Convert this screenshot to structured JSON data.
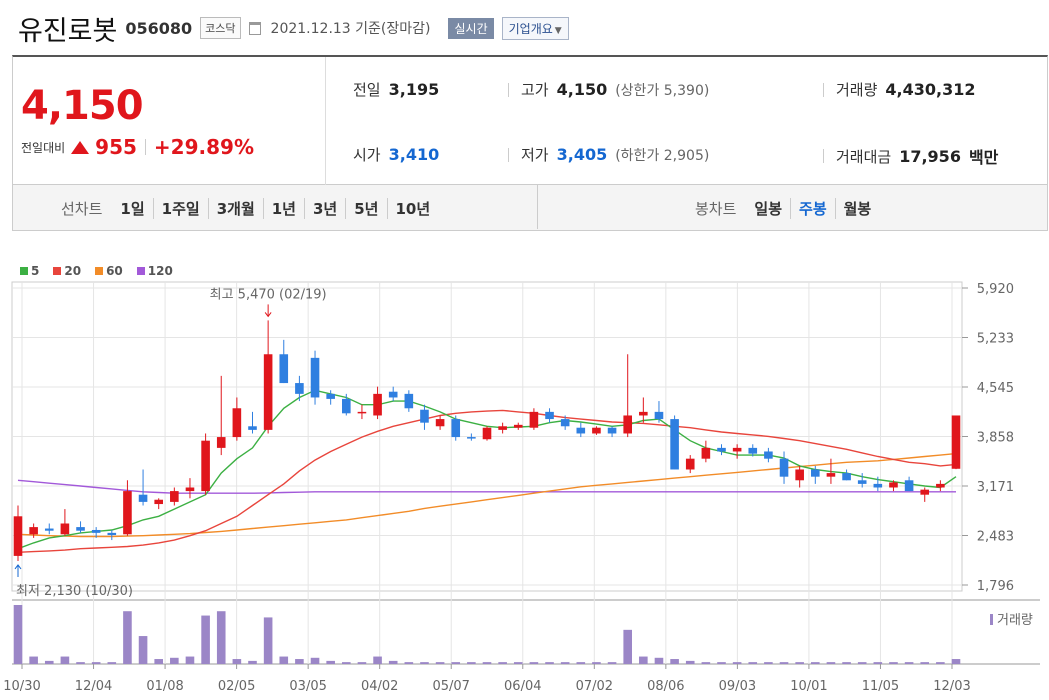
{
  "header": {
    "name": "유진로봇",
    "code": "056080",
    "market": "코스닥",
    "date_text": "2021.12.13 기준(장마감)",
    "realtime_label": "실시간",
    "company_info_label": "기업개요"
  },
  "quote": {
    "price": "4,150",
    "change_label": "전일대비",
    "change": "955",
    "change_rate": "+29.89%",
    "prev_close_label": "전일",
    "prev_close": "3,195",
    "high_label": "고가",
    "high": "4,150",
    "upper_limit": "(상한가 5,390)",
    "volume_label": "거래량",
    "volume": "4,430,312",
    "open_label": "시가",
    "open": "3,410",
    "low_label": "저가",
    "low": "3,405",
    "lower_limit": "(하한가 2,905)",
    "trade_value_label": "거래대금",
    "trade_value": "17,956",
    "trade_value_unit": "백만"
  },
  "periods": {
    "line_label": "선차트",
    "line_items": [
      "1일",
      "1주일",
      "3개월",
      "1년",
      "3년",
      "5년",
      "10년"
    ],
    "candle_label": "봉차트",
    "candle_items": [
      "일봉",
      "주봉",
      "월봉"
    ],
    "candle_selected": "주봉"
  },
  "legend": [
    {
      "label": "5",
      "color": "#3cb043"
    },
    {
      "label": "20",
      "color": "#e8453c"
    },
    {
      "label": "60",
      "color": "#f28c28"
    },
    {
      "label": "120",
      "color": "#a259d9"
    }
  ],
  "colors": {
    "up": "#e0161c",
    "down": "#2f7fe0",
    "volume": "#9b86c7",
    "grid": "#e5e5e5"
  },
  "chart_data": {
    "type": "candlestick",
    "y_ticks": [
      "5,920",
      "5,233",
      "4,545",
      "3,858",
      "3,171",
      "2,483",
      "1,796"
    ],
    "ylim": [
      1796,
      5920
    ],
    "x_ticks": [
      "10/30",
      "12/04",
      "01/08",
      "02/05",
      "03/05",
      "04/02",
      "05/07",
      "06/04",
      "07/02",
      "08/06",
      "09/03",
      "10/01",
      "11/05",
      "12/03"
    ],
    "high_annotation": "최고 5,470 (02/19)",
    "low_annotation": "최저 2,130 (10/30)",
    "volume_label": "거래량",
    "candles": [
      {
        "o": 2200,
        "h": 2900,
        "l": 2130,
        "c": 2750
      },
      {
        "o": 2500,
        "h": 2650,
        "l": 2450,
        "c": 2600
      },
      {
        "o": 2580,
        "h": 2650,
        "l": 2500,
        "c": 2550
      },
      {
        "o": 2500,
        "h": 2850,
        "l": 2480,
        "c": 2650
      },
      {
        "o": 2600,
        "h": 2680,
        "l": 2520,
        "c": 2550
      },
      {
        "o": 2560,
        "h": 2600,
        "l": 2450,
        "c": 2520
      },
      {
        "o": 2520,
        "h": 2560,
        "l": 2420,
        "c": 2490
      },
      {
        "o": 2500,
        "h": 3250,
        "l": 2480,
        "c": 3100
      },
      {
        "o": 3050,
        "h": 3400,
        "l": 2900,
        "c": 2950
      },
      {
        "o": 2920,
        "h": 3000,
        "l": 2850,
        "c": 2980
      },
      {
        "o": 2950,
        "h": 3150,
        "l": 2900,
        "c": 3100
      },
      {
        "o": 3100,
        "h": 3280,
        "l": 3000,
        "c": 3150
      },
      {
        "o": 3100,
        "h": 3900,
        "l": 3050,
        "c": 3800
      },
      {
        "o": 3700,
        "h": 4700,
        "l": 3600,
        "c": 3850
      },
      {
        "o": 3850,
        "h": 4400,
        "l": 3800,
        "c": 4250
      },
      {
        "o": 4000,
        "h": 4200,
        "l": 3900,
        "c": 3950
      },
      {
        "o": 3950,
        "h": 5470,
        "l": 3900,
        "c": 5000
      },
      {
        "o": 5000,
        "h": 5200,
        "l": 4600,
        "c": 4600
      },
      {
        "o": 4600,
        "h": 4700,
        "l": 4350,
        "c": 4450
      },
      {
        "o": 4950,
        "h": 5050,
        "l": 4300,
        "c": 4400
      },
      {
        "o": 4450,
        "h": 4500,
        "l": 4300,
        "c": 4380
      },
      {
        "o": 4380,
        "h": 4450,
        "l": 4150,
        "c": 4180
      },
      {
        "o": 4180,
        "h": 4300,
        "l": 4100,
        "c": 4200
      },
      {
        "o": 4150,
        "h": 4550,
        "l": 4100,
        "c": 4450
      },
      {
        "o": 4480,
        "h": 4550,
        "l": 4350,
        "c": 4400
      },
      {
        "o": 4450,
        "h": 4500,
        "l": 4200,
        "c": 4250
      },
      {
        "o": 4230,
        "h": 4300,
        "l": 3950,
        "c": 4050
      },
      {
        "o": 4000,
        "h": 4150,
        "l": 3950,
        "c": 4100
      },
      {
        "o": 4100,
        "h": 4150,
        "l": 3800,
        "c": 3850
      },
      {
        "o": 3850,
        "h": 3900,
        "l": 3800,
        "c": 3830
      },
      {
        "o": 3820,
        "h": 4000,
        "l": 3800,
        "c": 3980
      },
      {
        "o": 3950,
        "h": 4050,
        "l": 3900,
        "c": 4000
      },
      {
        "o": 3980,
        "h": 4050,
        "l": 3950,
        "c": 4020
      },
      {
        "o": 3980,
        "h": 4250,
        "l": 3950,
        "c": 4200
      },
      {
        "o": 4200,
        "h": 4250,
        "l": 4050,
        "c": 4100
      },
      {
        "o": 4100,
        "h": 4150,
        "l": 3950,
        "c": 4000
      },
      {
        "o": 3980,
        "h": 4050,
        "l": 3850,
        "c": 3900
      },
      {
        "o": 3900,
        "h": 4000,
        "l": 3880,
        "c": 3980
      },
      {
        "o": 3980,
        "h": 4000,
        "l": 3850,
        "c": 3900
      },
      {
        "o": 3900,
        "h": 5000,
        "l": 3850,
        "c": 4150
      },
      {
        "o": 4150,
        "h": 4400,
        "l": 4050,
        "c": 4200
      },
      {
        "o": 4200,
        "h": 4350,
        "l": 4050,
        "c": 4100
      },
      {
        "o": 4100,
        "h": 4150,
        "l": 3400,
        "c": 3400
      },
      {
        "o": 3400,
        "h": 3600,
        "l": 3350,
        "c": 3550
      },
      {
        "o": 3550,
        "h": 3800,
        "l": 3500,
        "c": 3700
      },
      {
        "o": 3700,
        "h": 3750,
        "l": 3600,
        "c": 3650
      },
      {
        "o": 3650,
        "h": 3750,
        "l": 3550,
        "c": 3700
      },
      {
        "o": 3700,
        "h": 3750,
        "l": 3580,
        "c": 3620
      },
      {
        "o": 3650,
        "h": 3700,
        "l": 3500,
        "c": 3550
      },
      {
        "o": 3550,
        "h": 3650,
        "l": 3200,
        "c": 3300
      },
      {
        "o": 3250,
        "h": 3450,
        "l": 3150,
        "c": 3400
      },
      {
        "o": 3400,
        "h": 3450,
        "l": 3200,
        "c": 3300
      },
      {
        "o": 3300,
        "h": 3550,
        "l": 3200,
        "c": 3350
      },
      {
        "o": 3350,
        "h": 3400,
        "l": 3250,
        "c": 3250
      },
      {
        "o": 3250,
        "h": 3350,
        "l": 3150,
        "c": 3200
      },
      {
        "o": 3200,
        "h": 3300,
        "l": 3100,
        "c": 3150
      },
      {
        "o": 3150,
        "h": 3250,
        "l": 3100,
        "c": 3220
      },
      {
        "o": 3250,
        "h": 3300,
        "l": 3100,
        "c": 3100
      },
      {
        "o": 3050,
        "h": 3150,
        "l": 2950,
        "c": 3120
      },
      {
        "o": 3150,
        "h": 3250,
        "l": 3100,
        "c": 3200
      },
      {
        "o": 3410,
        "h": 4150,
        "l": 3405,
        "c": 4150
      }
    ],
    "volumes": [
      95,
      12,
      5,
      12,
      3,
      3,
      3,
      85,
      45,
      8,
      10,
      12,
      78,
      85,
      8,
      5,
      75,
      12,
      8,
      10,
      5,
      3,
      3,
      12,
      5,
      3,
      3,
      3,
      3,
      3,
      3,
      3,
      3,
      3,
      3,
      3,
      3,
      3,
      3,
      55,
      12,
      10,
      8,
      5,
      3,
      3,
      3,
      3,
      3,
      3,
      3,
      3,
      3,
      3,
      3,
      3,
      3,
      3,
      3,
      3,
      8
    ],
    "ma5": [
      2300,
      2380,
      2450,
      2480,
      2520,
      2540,
      2560,
      2620,
      2700,
      2750,
      2850,
      2950,
      3050,
      3350,
      3550,
      3700,
      4000,
      4250,
      4400,
      4500,
      4450,
      4400,
      4300,
      4300,
      4350,
      4350,
      4280,
      4200,
      4100,
      4050,
      4000,
      3980,
      3990,
      4000,
      4050,
      4080,
      4060,
      4030,
      4000,
      4020,
      4080,
      4100,
      3950,
      3800,
      3700,
      3650,
      3600,
      3600,
      3600,
      3560,
      3450,
      3400,
      3370,
      3350,
      3300,
      3260,
      3230,
      3200,
      3170,
      3150,
      3300
    ],
    "ma20": [
      2250,
      2260,
      2270,
      2280,
      2300,
      2310,
      2320,
      2330,
      2350,
      2380,
      2420,
      2480,
      2550,
      2650,
      2750,
      2900,
      3050,
      3200,
      3380,
      3530,
      3650,
      3750,
      3850,
      3930,
      4000,
      4050,
      4100,
      4150,
      4180,
      4200,
      4210,
      4220,
      4200,
      4180,
      4150,
      4120,
      4100,
      4080,
      4060,
      4050,
      4040,
      4020,
      4000,
      3980,
      3950,
      3920,
      3900,
      3880,
      3860,
      3830,
      3800,
      3760,
      3720,
      3680,
      3630,
      3580,
      3540,
      3500,
      3480,
      3450,
      3470
    ],
    "ma60": [
      2500,
      2490,
      2480,
      2475,
      2470,
      2470,
      2470,
      2475,
      2480,
      2490,
      2500,
      2510,
      2525,
      2540,
      2560,
      2580,
      2600,
      2620,
      2640,
      2660,
      2680,
      2700,
      2730,
      2760,
      2790,
      2820,
      2860,
      2890,
      2920,
      2950,
      2980,
      3010,
      3040,
      3070,
      3100,
      3130,
      3160,
      3180,
      3200,
      3220,
      3240,
      3260,
      3280,
      3300,
      3320,
      3340,
      3360,
      3380,
      3400,
      3420,
      3440,
      3460,
      3480,
      3500,
      3510,
      3520,
      3540,
      3560,
      3580,
      3600,
      3620
    ],
    "ma120": [
      3250,
      3230,
      3210,
      3190,
      3170,
      3150,
      3130,
      3110,
      3090,
      3080,
      3070,
      3070,
      3070,
      3070,
      3070,
      3070,
      3075,
      3080,
      3085,
      3090,
      3090,
      3090,
      3090,
      3090,
      3090,
      3090,
      3090,
      3090,
      3090,
      3090,
      3090,
      3090,
      3090,
      3090,
      3090,
      3090,
      3090,
      3090,
      3090,
      3090,
      3090,
      3090,
      3090,
      3090,
      3090,
      3090,
      3090,
      3090,
      3090,
      3090,
      3090,
      3090,
      3090,
      3090,
      3090,
      3090,
      3090,
      3090,
      3090,
      3090,
      3090
    ]
  }
}
